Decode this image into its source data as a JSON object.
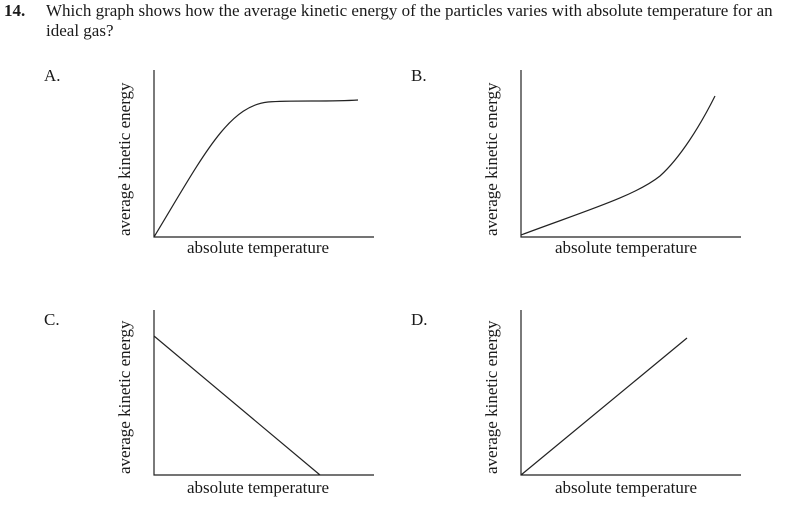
{
  "question": {
    "number": "14.",
    "text": "Which graph shows how the average kinetic energy of the particles varies with absolute temperature for an ideal gas?"
  },
  "options": [
    {
      "label": "A.",
      "ylabel": "average kinetic energy",
      "xlabel": "absolute temperature",
      "shape": "rising-then-plateau"
    },
    {
      "label": "B.",
      "ylabel": "average kinetic energy",
      "xlabel": "absolute temperature",
      "shape": "increasing-concave-up"
    },
    {
      "label": "C.",
      "ylabel": "average kinetic energy",
      "xlabel": "absolute temperature",
      "shape": "linear-decreasing"
    },
    {
      "label": "D.",
      "ylabel": "average kinetic energy",
      "xlabel": "absolute temperature",
      "shape": "linear-through-origin"
    }
  ]
}
